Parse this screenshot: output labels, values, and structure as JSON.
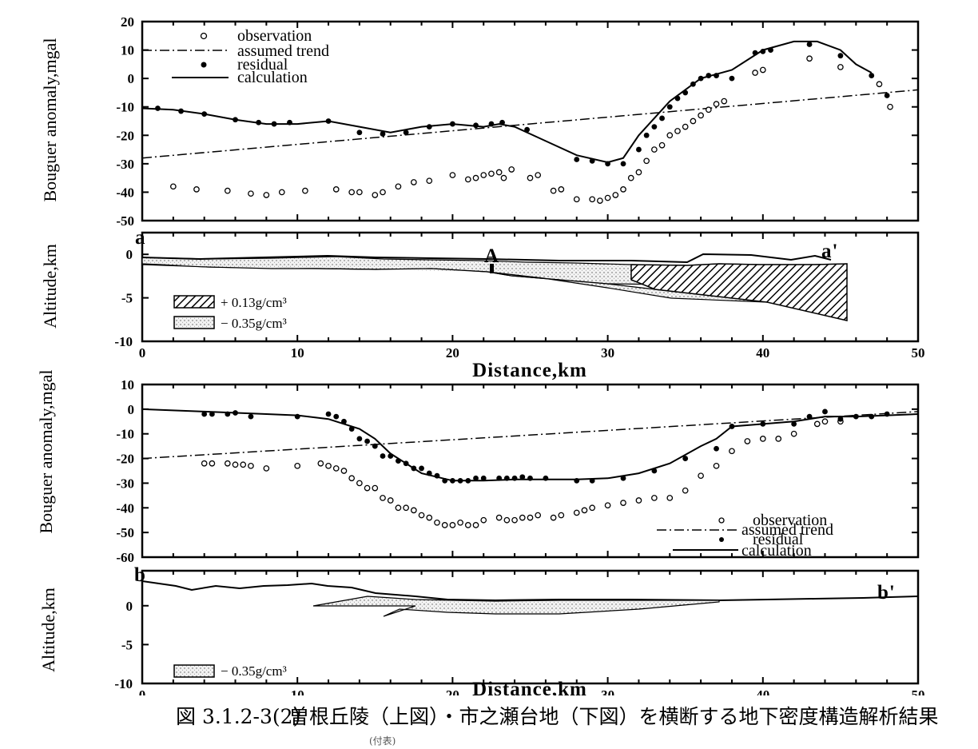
{
  "caption": {
    "number": "図 3.1.2-3(2)",
    "text": "曽根丘陵（上図）・市之瀬台地（下図）を横断する地下密度構造解析結果",
    "sub": "(付表)"
  },
  "legend_top": {
    "observation": "observation",
    "trend": "assumed trend",
    "residual": "residual",
    "calculation": "calculation"
  },
  "legend_bottom": {
    "observation": "observation",
    "trend": "assumed trend",
    "residual": "residual",
    "calculation": "calculation"
  },
  "section_a": {
    "label_left": "a",
    "label_right": "a'",
    "marker": "A",
    "dense_label": "+ 0.13g/cm³",
    "light_label": "− 0.35g/cm³",
    "ylabel": "Altitude,km",
    "xlabel": "Distance,km"
  },
  "section_b": {
    "label_left": "b",
    "label_right": "b'",
    "light_label": "− 0.35g/cm³",
    "ylabel": "Altitude,km",
    "xlabel": "Distance,km"
  },
  "chart_data": [
    {
      "type": "scatter",
      "ylabel": "Bouguer anomaly,mgal",
      "xlim": [
        0,
        50
      ],
      "ylim": [
        -50,
        20
      ],
      "yticks": [
        20,
        10,
        0,
        -10,
        -20,
        -30,
        -40,
        -50
      ],
      "series": [
        {
          "name": "observation",
          "marker": "open-circle",
          "x": [
            2,
            3.5,
            5.5,
            7,
            8,
            9,
            10.5,
            12.5,
            13.5,
            14,
            15,
            15.5,
            16.5,
            17.5,
            18.5,
            20,
            21,
            21.5,
            22,
            22.5,
            23,
            23.3,
            23.8,
            25,
            25.5,
            26.5,
            27,
            28,
            29,
            29.5,
            30,
            30.5,
            31,
            31.5,
            32,
            32.5,
            33,
            33.5,
            34,
            34.5,
            35,
            35.5,
            36,
            36.5,
            37,
            37.5,
            39.5,
            40,
            43,
            45,
            47.5,
            48.2
          ],
          "y": [
            -38,
            -39,
            -39.5,
            -40.5,
            -41,
            -40,
            -39.5,
            -39,
            -40,
            -40,
            -41,
            -40,
            -38,
            -36.5,
            -36,
            -34,
            -35.5,
            -35,
            -34,
            -33.5,
            -33,
            -35,
            -32,
            -35,
            -34,
            -39.5,
            -39,
            -42.5,
            -42.5,
            -43,
            -42,
            -41,
            -39,
            -35,
            -33,
            -29,
            -25,
            -23.5,
            -20,
            -18.5,
            -17,
            -15,
            -13,
            -11,
            -9,
            -8,
            2,
            3,
            7,
            4,
            -2,
            -10
          ]
        },
        {
          "name": "residual",
          "marker": "filled-dot",
          "x": [
            1,
            2.5,
            4,
            6,
            7.5,
            8.5,
            9.5,
            12,
            14,
            15.5,
            17,
            18.5,
            20,
            21.5,
            22.5,
            23.2,
            24.8,
            28,
            29,
            30,
            31,
            32,
            32.5,
            33,
            33.5,
            34,
            34.5,
            35,
            35.5,
            36,
            36.5,
            37,
            38,
            39.5,
            40,
            40.5,
            43,
            45,
            47,
            48
          ],
          "y": [
            -10.5,
            -11.5,
            -12.5,
            -14.5,
            -15.5,
            -16,
            -15.5,
            -15,
            -19,
            -19.5,
            -19,
            -17,
            -16,
            -16.5,
            -16,
            -15.5,
            -18,
            -28.5,
            -29,
            -30,
            -30,
            -25,
            -20,
            -17,
            -14,
            -10,
            -7,
            -5,
            -2,
            0,
            1,
            1,
            0,
            9,
            9.5,
            10,
            12,
            8,
            1,
            -6
          ]
        },
        {
          "name": "calculation",
          "type": "line",
          "x": [
            0,
            2,
            4,
            6,
            8,
            10,
            12,
            14,
            16,
            18,
            20,
            22,
            23,
            24,
            26,
            28,
            30,
            31,
            32,
            34,
            36,
            38,
            40,
            42,
            43.5,
            45,
            46,
            47
          ],
          "y": [
            -10.5,
            -11,
            -12.5,
            -14.5,
            -16,
            -16,
            -15,
            -17,
            -19,
            -17,
            -16,
            -17,
            -16,
            -17,
            -22,
            -27,
            -29.5,
            -28,
            -20,
            -8,
            0,
            3,
            10,
            13,
            13,
            10,
            5,
            2
          ]
        },
        {
          "name": "assumed trend",
          "type": "line",
          "x": [
            0,
            50
          ],
          "y": [
            -28,
            -4
          ]
        }
      ]
    },
    {
      "type": "scatter",
      "ylabel": "Bouguer anomaly,mgal",
      "xlim": [
        0,
        50
      ],
      "ylim": [
        -60,
        10
      ],
      "yticks": [
        10,
        0,
        -10,
        -20,
        -30,
        -40,
        -50,
        -60
      ],
      "series": [
        {
          "name": "observation",
          "marker": "open-circle",
          "x": [
            4,
            4.5,
            5.5,
            6,
            6.5,
            7,
            8,
            10,
            11.5,
            12,
            12.5,
            13,
            13.5,
            14,
            14.5,
            15,
            15.5,
            16,
            16.5,
            17,
            17.5,
            18,
            18.5,
            19,
            19.5,
            20,
            20.5,
            21,
            21.5,
            22,
            23,
            23.5,
            24,
            24.5,
            25,
            25.5,
            26.5,
            27,
            28,
            28.5,
            29,
            30,
            31,
            32,
            33,
            34,
            35,
            36,
            37,
            38,
            39,
            40,
            41,
            42,
            43.5,
            44,
            45
          ],
          "y": [
            -22,
            -22,
            -22,
            -22.5,
            -22.5,
            -23,
            -24,
            -23,
            -22,
            -23,
            -24,
            -25,
            -28,
            -30,
            -32,
            -32,
            -36,
            -37,
            -40,
            -40,
            -41,
            -43,
            -44,
            -46,
            -47,
            -47,
            -46,
            -47,
            -47,
            -45,
            -44,
            -45,
            -45,
            -44,
            -44,
            -43,
            -44,
            -43,
            -42,
            -41,
            -40,
            -39,
            -38,
            -37,
            -36,
            -36,
            -33,
            -27,
            -23,
            -17,
            -13,
            -12,
            -12,
            -10,
            -6,
            -5,
            -5
          ]
        },
        {
          "name": "residual",
          "marker": "filled-dot",
          "x": [
            4,
            4.5,
            5.5,
            6,
            7,
            10,
            12,
            12.5,
            13,
            13.5,
            14,
            14.5,
            15,
            15.5,
            16,
            16.5,
            17,
            17.5,
            18,
            18.5,
            19,
            19.5,
            20,
            20.5,
            21,
            21.5,
            22,
            23,
            23.5,
            24,
            24.5,
            25,
            26,
            28,
            29,
            31,
            33,
            35,
            37,
            38,
            40,
            42,
            43,
            44,
            45,
            46,
            47,
            48
          ],
          "y": [
            -2,
            -2,
            -2,
            -1.5,
            -3,
            -3,
            -2,
            -3,
            -5,
            -8,
            -12,
            -13,
            -15,
            -19,
            -19,
            -21,
            -22,
            -24,
            -24,
            -26,
            -27,
            -29,
            -29,
            -29,
            -29,
            -28,
            -28,
            -28,
            -28,
            -28,
            -27.5,
            -28,
            -28,
            -29,
            -29,
            -28,
            -25,
            -20,
            -16,
            -7,
            -6,
            -6,
            -3,
            -1,
            -4,
            -3,
            -3,
            -2
          ]
        },
        {
          "name": "calculation",
          "type": "line",
          "x": [
            0,
            4,
            8,
            10,
            12,
            14,
            15,
            16,
            17,
            18,
            20,
            22,
            24,
            26,
            28,
            30,
            32,
            34,
            36,
            37,
            38,
            40,
            42,
            44,
            46,
            48,
            50
          ],
          "y": [
            0,
            -1,
            -2,
            -2.5,
            -4,
            -8,
            -12,
            -18,
            -22,
            -26,
            -29,
            -29,
            -28.5,
            -28.5,
            -28.5,
            -28,
            -26,
            -22,
            -15,
            -12,
            -7,
            -6,
            -5,
            -3,
            -3,
            -2.5,
            -2
          ]
        },
        {
          "name": "assumed trend",
          "type": "line",
          "x": [
            0,
            50
          ],
          "y": [
            -20,
            -1
          ]
        }
      ]
    }
  ]
}
